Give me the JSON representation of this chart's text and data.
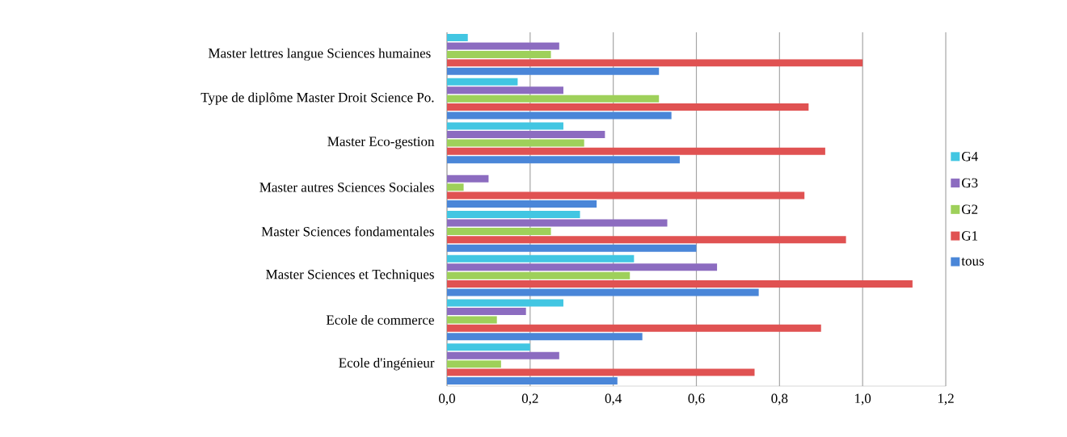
{
  "chart_data": {
    "type": "bar",
    "orientation": "horizontal",
    "categories": [
      "Master lettres langue Sciences humaines ",
      "Type de diplôme  Master Droit Science Po.",
      "Master Eco-gestion",
      "Master autres Sciences Sociales",
      "Master Sciences fondamentales",
      "Master Sciences et Techniques",
      "Ecole de commerce",
      "Ecole d'ingénieur"
    ],
    "series": [
      {
        "name": "tous",
        "color": "#4a86d8",
        "values": [
          0.51,
          0.54,
          0.56,
          0.36,
          0.6,
          0.75,
          0.47,
          0.41
        ]
      },
      {
        "name": "G1",
        "color": "#e05252",
        "values": [
          1.0,
          0.87,
          0.91,
          0.86,
          0.96,
          1.12,
          0.9,
          0.74
        ]
      },
      {
        "name": "G2",
        "color": "#9ed05a",
        "values": [
          0.25,
          0.51,
          0.33,
          0.04,
          0.25,
          0.44,
          0.12,
          0.13
        ]
      },
      {
        "name": "G3",
        "color": "#8c6cc0",
        "values": [
          0.27,
          0.28,
          0.38,
          0.1,
          0.53,
          0.65,
          0.19,
          0.27
        ]
      },
      {
        "name": "G4",
        "color": "#42c6e2",
        "values": [
          0.05,
          0.17,
          0.28,
          null,
          0.32,
          0.45,
          0.28,
          0.2
        ]
      }
    ],
    "xlim": [
      0,
      1.2
    ],
    "xticks": [
      {
        "value": 0,
        "label": "0,0"
      },
      {
        "value": 0.2,
        "label": "0,2"
      },
      {
        "value": 0.4,
        "label": "0,4"
      },
      {
        "value": 0.6,
        "label": "0,6"
      },
      {
        "value": 0.8,
        "label": "0,8"
      },
      {
        "value": 1.0,
        "label": "1,0"
      },
      {
        "value": 1.2,
        "label": "1,2"
      }
    ],
    "grid": "x",
    "legend": "right"
  }
}
